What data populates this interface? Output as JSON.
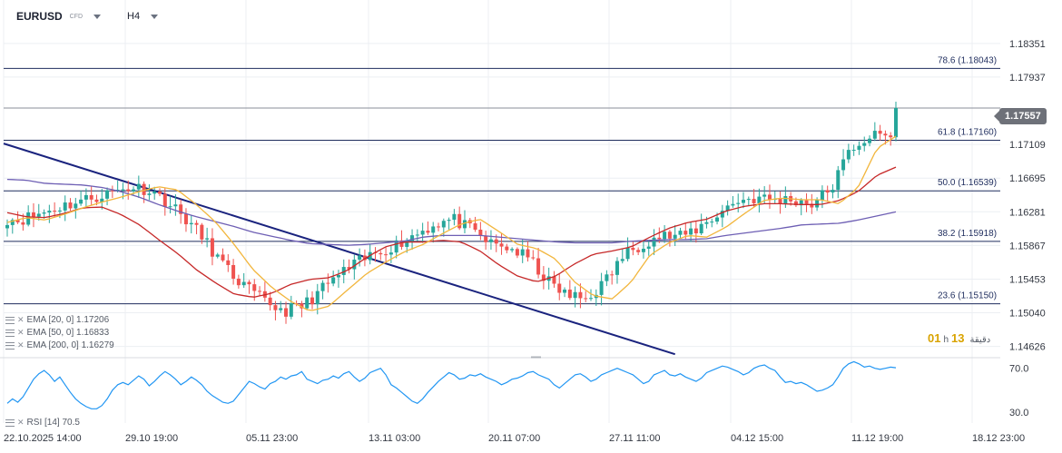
{
  "header": {
    "symbol": "EURUSD",
    "instrument_type": "CFD",
    "timeframe": "H4"
  },
  "colors": {
    "up": "#26a69a",
    "down": "#ef5350",
    "ema20": "#f2b63d",
    "ema50": "#c62828",
    "ema200": "#6e5fb4",
    "trendline": "#1a237e",
    "fib": "#1f2d5e",
    "rsi": "#2196f3",
    "grid": "#eceff3"
  },
  "legend": {
    "ema20": "EMA [20, 0]  1.17206",
    "ema50": "EMA [50, 0]  1.16833",
    "ema200": "EMA [200, 0]  1.16279",
    "rsi": "RSI [14]  70.5"
  },
  "timer": {
    "hours": "01",
    "h": "h",
    "minutes": "13",
    "unit_suffix": "دقيقة"
  },
  "chart_data": [
    {
      "type": "candlestick",
      "symbol": "EURUSD",
      "timeframe": "H4",
      "ylim": [
        1.1451,
        1.1855
      ],
      "y_ticks": [
        "1.18351",
        "1.17937",
        "1.17109",
        "1.16695",
        "1.16281",
        "1.15867",
        "1.15453",
        "1.15040",
        "1.14626"
      ],
      "x_ticks": [
        "22.10.2025  14:00",
        "29.10  19:00",
        "05.11  23:00",
        "13.11  03:00",
        "20.11  07:00",
        "27.11  11:00",
        "04.12  15:00",
        "11.12  19:00",
        "18.12  23:00"
      ],
      "last_price": "1.17557",
      "fibonacci_levels": [
        {
          "label": "78.6 (1.18043)",
          "price": 1.18043
        },
        {
          "label": "61.8 (1.17160)",
          "price": 1.1716
        },
        {
          "label": "50.0 (1.16539)",
          "price": 1.16539
        },
        {
          "label": "38.2 (1.15918)",
          "price": 1.15918
        },
        {
          "label": "23.6 (1.15150)",
          "price": 1.1515
        }
      ],
      "trendline": {
        "start": {
          "x": "22.10.2025 14:00",
          "y": 1.1712
        },
        "end": {
          "x": "02.12 23:00",
          "y": 1.1453
        }
      },
      "series": [
        {
          "name": "EMA [20, 0]",
          "last": 1.17206,
          "anchors": [
            1.1615,
            1.1621,
            1.1618,
            1.1625,
            1.1633,
            1.164,
            1.1646,
            1.1653,
            1.1659,
            1.1655,
            1.1637,
            1.1616,
            1.1588,
            1.1557,
            1.1535,
            1.1518,
            1.1506,
            1.1512,
            1.1532,
            1.1552,
            1.1566,
            1.1579,
            1.1588,
            1.1601,
            1.1613,
            1.1619,
            1.1604,
            1.1588,
            1.1583,
            1.157,
            1.1542,
            1.1525,
            1.1521,
            1.1542,
            1.1575,
            1.159,
            1.1599,
            1.1597,
            1.1609,
            1.1626,
            1.1642,
            1.1645,
            1.1643,
            1.1643,
            1.1638,
            1.1658,
            1.1706,
            1.1721
          ]
        },
        {
          "name": "EMA [50, 0]",
          "last": 1.16833,
          "anchors": [
            1.1627,
            1.1622,
            1.1621,
            1.1626,
            1.1633,
            1.1634,
            1.1625,
            1.1612,
            1.1594,
            1.1577,
            1.1557,
            1.1541,
            1.1527,
            1.1523,
            1.1528,
            1.1539,
            1.1545,
            1.1547,
            1.1556,
            1.1572,
            1.1585,
            1.1591,
            1.1591,
            1.1593,
            1.1591,
            1.158,
            1.1563,
            1.1549,
            1.1542,
            1.1549,
            1.1564,
            1.1576,
            1.158,
            1.1585,
            1.1597,
            1.1608,
            1.1615,
            1.1619,
            1.1629,
            1.1635,
            1.1638,
            1.1638,
            1.1637,
            1.1637,
            1.1642,
            1.1653,
            1.1673,
            1.1683
          ]
        },
        {
          "name": "EMA [200, 0]",
          "last": 1.16279,
          "anchors": [
            1.1668,
            1.1667,
            1.1663,
            1.1662,
            1.1661,
            1.1658,
            1.1653,
            1.1646,
            1.1637,
            1.1629,
            1.1622,
            1.1616,
            1.161,
            1.1603,
            1.1598,
            1.1593,
            1.1589,
            1.1588,
            1.1587,
            1.1588,
            1.159,
            1.1592,
            1.1597,
            1.1599,
            1.1599,
            1.1599,
            1.1597,
            1.1595,
            1.1593,
            1.1591,
            1.159,
            1.159,
            1.159,
            1.1592,
            1.1593,
            1.1594,
            1.1594,
            1.1595,
            1.1599,
            1.1602,
            1.1605,
            1.1608,
            1.1612,
            1.1613,
            1.1614,
            1.1618,
            1.1623,
            1.1628
          ]
        }
      ]
    },
    {
      "type": "line",
      "name": "RSI [14]",
      "last": 70.5,
      "ylim": [
        20,
        78
      ],
      "y_ticks": [
        "70.0",
        "30.0"
      ],
      "values": [
        38,
        42,
        39,
        44,
        52,
        60,
        65,
        68,
        64,
        58,
        62,
        55,
        48,
        42,
        38,
        35,
        33,
        33,
        36,
        42,
        50,
        55,
        57,
        55,
        59,
        63,
        60,
        54,
        58,
        63,
        67,
        64,
        60,
        55,
        58,
        62,
        59,
        55,
        49,
        45,
        42,
        39,
        38,
        40,
        46,
        52,
        58,
        56,
        53,
        51,
        56,
        58,
        62,
        60,
        63,
        64,
        67,
        60,
        58,
        56,
        59,
        60,
        63,
        61,
        65,
        67,
        62,
        58,
        61,
        66,
        68,
        70,
        64,
        55,
        52,
        48,
        44,
        40,
        38,
        42,
        48,
        53,
        58,
        62,
        66,
        64,
        60,
        61,
        64,
        63,
        65,
        62,
        60,
        58,
        55,
        57,
        60,
        61,
        63,
        66,
        67,
        64,
        62,
        60,
        55,
        52,
        56,
        60,
        64,
        65,
        62,
        58,
        60,
        64,
        66,
        68,
        70,
        68,
        66,
        64,
        60,
        56,
        58,
        64,
        66,
        68,
        64,
        63,
        65,
        62,
        60,
        58,
        61,
        66,
        68,
        70,
        72,
        71,
        69,
        67,
        64,
        66,
        70,
        72,
        73,
        70,
        68,
        62,
        57,
        58,
        56,
        57,
        55,
        52,
        49,
        50,
        52,
        55,
        62,
        70,
        74,
        76,
        74,
        71,
        72,
        70,
        69,
        70,
        71,
        70.5
      ]
    }
  ]
}
